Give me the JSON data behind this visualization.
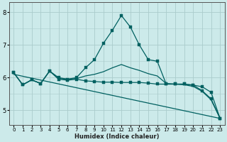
{
  "xlabel": "Humidex (Indice chaleur)",
  "xlim": [
    -0.5,
    23.5
  ],
  "ylim": [
    4.55,
    8.3
  ],
  "xticks": [
    0,
    1,
    2,
    3,
    4,
    5,
    6,
    7,
    8,
    9,
    10,
    11,
    12,
    13,
    14,
    15,
    16,
    17,
    18,
    19,
    20,
    21,
    22,
    23
  ],
  "yticks": [
    5,
    6,
    7,
    8
  ],
  "background_color": "#cceaea",
  "grid_color": "#aacccc",
  "line_color": "#006060",
  "series": [
    {
      "x": [
        0,
        1,
        2,
        3,
        4,
        5,
        6,
        7,
        8,
        9,
        10,
        11,
        12,
        13,
        14,
        15,
        16,
        17,
        18,
        19,
        20,
        21,
        22,
        23
      ],
      "y": [
        6.15,
        5.78,
        5.93,
        5.82,
        6.2,
        6.0,
        5.95,
        6.0,
        6.3,
        6.55,
        7.05,
        7.45,
        7.9,
        7.55,
        7.0,
        6.55,
        6.5,
        5.8,
        5.8,
        5.8,
        5.77,
        5.6,
        5.35,
        4.75
      ],
      "marker": "s",
      "markersize": 2.2,
      "linewidth": 0.9
    },
    {
      "x": [
        0,
        1,
        2,
        3,
        4,
        5,
        6,
        7,
        8,
        9,
        10,
        11,
        12,
        13,
        14,
        15,
        16,
        17,
        18,
        19,
        20,
        21,
        22,
        23
      ],
      "y": [
        6.15,
        5.78,
        5.93,
        5.82,
        6.2,
        5.95,
        5.92,
        5.95,
        5.9,
        5.88,
        5.86,
        5.86,
        5.85,
        5.85,
        5.85,
        5.83,
        5.8,
        5.8,
        5.8,
        5.8,
        5.77,
        5.72,
        5.55,
        4.75
      ],
      "marker": "s",
      "markersize": 2.2,
      "linewidth": 0.9
    },
    {
      "x": [
        0,
        23
      ],
      "y": [
        6.1,
        4.75
      ],
      "marker": null,
      "markersize": 0,
      "linewidth": 0.9
    },
    {
      "x": [
        0,
        1,
        2,
        3,
        4,
        5,
        6,
        7,
        8,
        9,
        10,
        11,
        12,
        13,
        14,
        15,
        16,
        17,
        18,
        19,
        20,
        21,
        22,
        23
      ],
      "y": [
        6.15,
        5.78,
        5.93,
        5.82,
        6.2,
        5.97,
        5.95,
        5.97,
        6.05,
        6.1,
        6.18,
        6.3,
        6.4,
        6.3,
        6.22,
        6.12,
        6.05,
        5.82,
        5.8,
        5.78,
        5.73,
        5.58,
        5.32,
        4.75
      ],
      "marker": null,
      "markersize": 0,
      "linewidth": 0.9
    }
  ]
}
